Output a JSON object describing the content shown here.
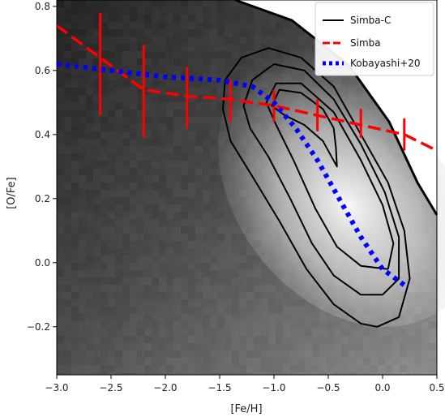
{
  "chart_data": {
    "type": "scatter",
    "title": "",
    "xlabel": "[Fe/H]",
    "ylabel": "[O/Fe]",
    "xlim": [
      -3.0,
      0.5
    ],
    "ylim": [
      -0.35,
      0.82
    ],
    "xticks": [
      -3.0,
      -2.5,
      -2.0,
      -1.5,
      -1.0,
      -0.5,
      0.0,
      0.5
    ],
    "xtick_labels": [
      "−3.0",
      "−2.5",
      "−2.0",
      "−1.5",
      "−1.0",
      "−0.5",
      "0.0",
      "0.5"
    ],
    "yticks": [
      -0.2,
      0.0,
      0.2,
      0.4,
      0.6,
      0.8
    ],
    "ytick_labels": [
      "−0.2",
      "0.0",
      "0.2",
      "0.4",
      "0.6",
      "0.8"
    ],
    "grid": false,
    "background": "grayscale density map",
    "legend_placement": "top-right",
    "colors": {
      "simba_c": "#000000",
      "simba": "#ff0000",
      "kobayashi": "#0000ff"
    },
    "series": [
      {
        "name": "Simba-C",
        "style": "solid contours",
        "contours": [
          [
            [
              -0.05,
              -0.2
            ],
            [
              0.15,
              -0.17
            ],
            [
              0.25,
              -0.05
            ],
            [
              0.2,
              0.1
            ],
            [
              0.05,
              0.25
            ],
            [
              -0.2,
              0.4
            ],
            [
              -0.45,
              0.55
            ],
            [
              -0.75,
              0.64
            ],
            [
              -1.05,
              0.67
            ],
            [
              -1.3,
              0.64
            ],
            [
              -1.45,
              0.57
            ],
            [
              -1.47,
              0.48
            ],
            [
              -1.4,
              0.38
            ],
            [
              -1.2,
              0.27
            ],
            [
              -0.95,
              0.13
            ],
            [
              -0.7,
              -0.02
            ],
            [
              -0.45,
              -0.13
            ],
            [
              -0.2,
              -0.19
            ],
            [
              -0.05,
              -0.2
            ]
          ],
          [
            [
              0.0,
              -0.1
            ],
            [
              0.15,
              -0.05
            ],
            [
              0.15,
              0.08
            ],
            [
              0.02,
              0.22
            ],
            [
              -0.2,
              0.37
            ],
            [
              -0.45,
              0.51
            ],
            [
              -0.72,
              0.6
            ],
            [
              -1.0,
              0.62
            ],
            [
              -1.2,
              0.57
            ],
            [
              -1.28,
              0.49
            ],
            [
              -1.22,
              0.42
            ],
            [
              -1.05,
              0.33
            ],
            [
              -0.85,
              0.2
            ],
            [
              -0.65,
              0.06
            ],
            [
              -0.45,
              -0.04
            ],
            [
              -0.2,
              -0.1
            ],
            [
              0.0,
              -0.1
            ]
          ],
          [
            [
              0.05,
              -0.02
            ],
            [
              0.1,
              0.06
            ],
            [
              0.0,
              0.18
            ],
            [
              -0.2,
              0.32
            ],
            [
              -0.45,
              0.47
            ],
            [
              -0.75,
              0.56
            ],
            [
              -0.98,
              0.56
            ],
            [
              -1.07,
              0.5
            ],
            [
              -0.98,
              0.43
            ],
            [
              -0.82,
              0.32
            ],
            [
              -0.62,
              0.17
            ],
            [
              -0.42,
              0.05
            ],
            [
              -0.2,
              -0.01
            ],
            [
              0.05,
              -0.02
            ]
          ],
          [
            [
              -0.45,
              0.42
            ],
            [
              -0.55,
              0.48
            ],
            [
              -0.75,
              0.53
            ],
            [
              -0.95,
              0.54
            ],
            [
              -1.02,
              0.49
            ],
            [
              -0.9,
              0.46
            ],
            [
              -0.72,
              0.43
            ],
            [
              -0.55,
              0.38
            ],
            [
              -0.42,
              0.3
            ],
            [
              -0.43,
              0.36
            ],
            [
              -0.45,
              0.42
            ]
          ]
        ]
      },
      {
        "name": "Simba",
        "style": "dashed with error bars",
        "x": [
          -3.0,
          -2.6,
          -2.2,
          -1.8,
          -1.4,
          -1.0,
          -0.6,
          -0.2,
          0.2,
          0.5
        ],
        "y": [
          0.74,
          0.64,
          0.54,
          0.52,
          0.51,
          0.49,
          0.46,
          0.43,
          0.4,
          0.35
        ],
        "error_low": [
          null,
          0.46,
          0.39,
          0.42,
          0.44,
          0.44,
          0.41,
          0.39,
          0.35,
          null
        ],
        "error_high": [
          null,
          0.78,
          0.68,
          0.61,
          0.57,
          0.54,
          0.51,
          0.48,
          0.45,
          null
        ]
      },
      {
        "name": "Kobayashi+20",
        "style": "dotted",
        "x": [
          -3.0,
          -2.5,
          -2.0,
          -1.5,
          -1.2,
          -1.0,
          -0.8,
          -0.6,
          -0.4,
          -0.2,
          0.0,
          0.2
        ],
        "y": [
          0.62,
          0.6,
          0.58,
          0.57,
          0.55,
          0.5,
          0.42,
          0.32,
          0.2,
          0.08,
          -0.02,
          -0.07
        ]
      }
    ]
  }
}
